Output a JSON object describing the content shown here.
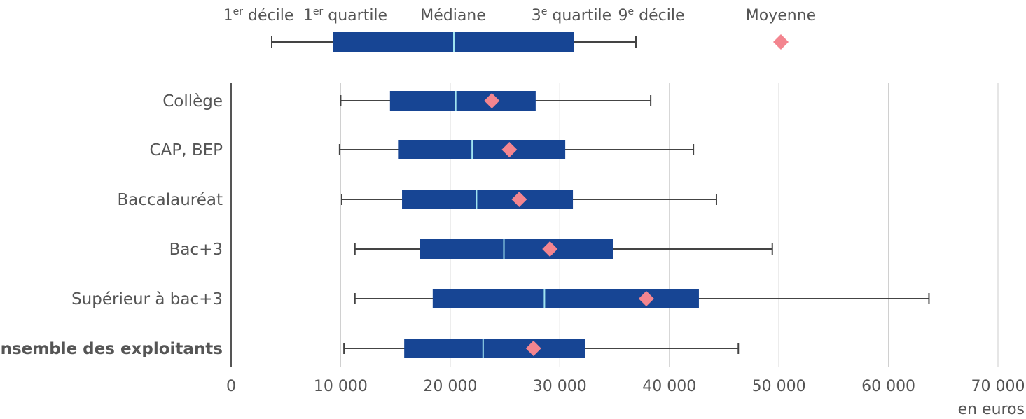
{
  "chart_data": {
    "type": "boxplot",
    "unit_label": "en euros",
    "xlim": [
      0,
      70000
    ],
    "xticks": [
      0,
      10000,
      20000,
      30000,
      40000,
      50000,
      60000,
      70000
    ],
    "xtick_labels": [
      "0",
      "10 000",
      "20 000",
      "30 000",
      "40 000",
      "50 000",
      "60 000",
      "70 000"
    ],
    "grid": "vertical",
    "colors": {
      "box": "#174594",
      "median": "#9fe3f0",
      "mean": "#f3858f",
      "whisker": "#444444",
      "grid": "#cccccc"
    },
    "legend": {
      "items": [
        {
          "key": "d1",
          "base": "1",
          "sup": "er",
          "text": " décile"
        },
        {
          "key": "q1",
          "base": "1",
          "sup": "er",
          "text": " quartile"
        },
        {
          "key": "med",
          "base": "",
          "sup": "",
          "text": "Médiane"
        },
        {
          "key": "q3",
          "base": "3",
          "sup": "e",
          "text": " quartile"
        },
        {
          "key": "d9",
          "base": "9",
          "sup": "e",
          "text": " décile"
        },
        {
          "key": "mean",
          "base": "",
          "sup": "",
          "text": "Moyenne"
        }
      ]
    },
    "categories": [
      {
        "label": "Collège",
        "bold": false,
        "d1": 10000,
        "q1": 14500,
        "median": 20500,
        "q3": 27800,
        "d9": 38300,
        "mean": 23800
      },
      {
        "label": "CAP, BEP",
        "bold": false,
        "d1": 9900,
        "q1": 15300,
        "median": 22000,
        "q3": 30500,
        "d9": 42200,
        "mean": 25400
      },
      {
        "label": "Baccalauréat",
        "bold": false,
        "d1": 10100,
        "q1": 15600,
        "median": 22400,
        "q3": 31200,
        "d9": 44300,
        "mean": 26300
      },
      {
        "label": "Bac+3",
        "bold": false,
        "d1": 11300,
        "q1": 17200,
        "median": 24900,
        "q3": 34900,
        "d9": 49400,
        "mean": 29100
      },
      {
        "label": "Supérieur à bac+3",
        "bold": false,
        "d1": 11300,
        "q1": 18400,
        "median": 28600,
        "q3": 42700,
        "d9": 63700,
        "mean": 37900
      },
      {
        "label": "Ensemble des exploitants",
        "bold": true,
        "d1": 10300,
        "q1": 15800,
        "median": 23000,
        "q3": 32300,
        "d9": 46300,
        "mean": 27600
      }
    ]
  }
}
